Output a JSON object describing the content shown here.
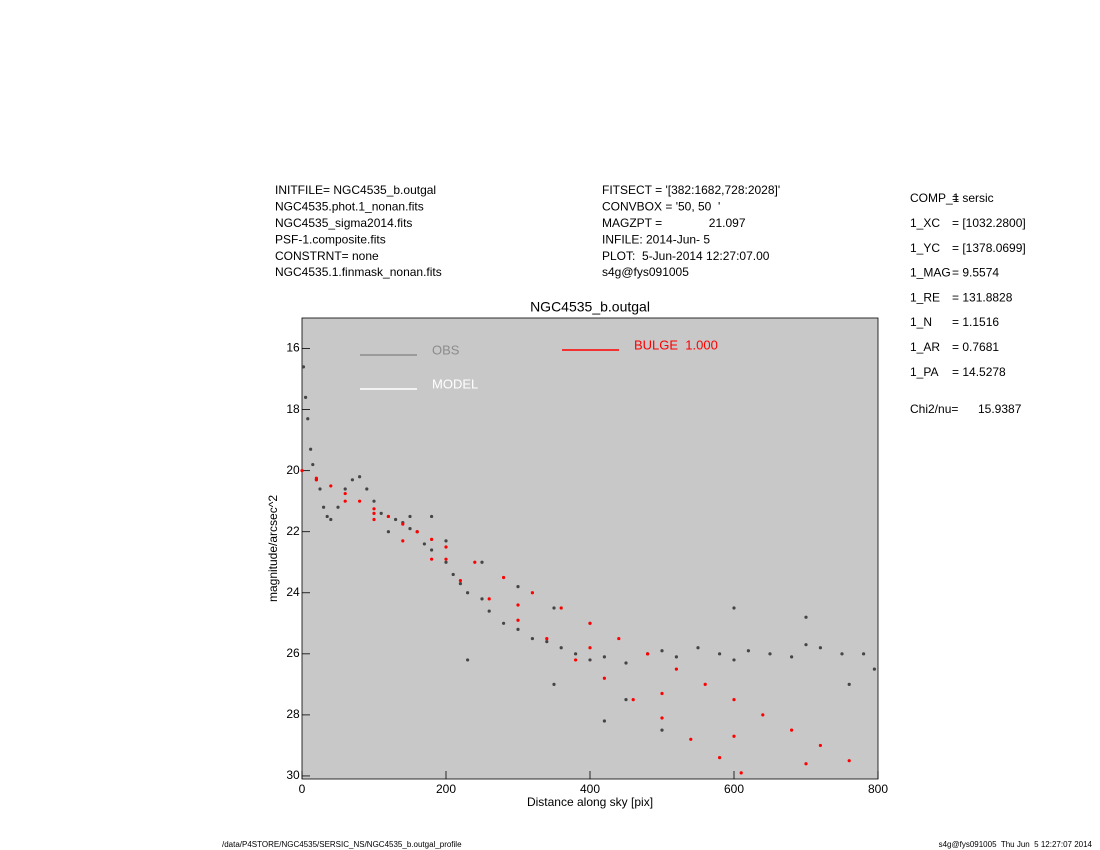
{
  "header": {
    "left": [
      "INITFILE= NGC4535_b.outgal",
      "NGC4535.phot.1_nonan.fits",
      "NGC4535_sigma2014.fits",
      "PSF-1.composite.fits",
      "CONSTRNT= none",
      "NGC4535.1.finmask_nonan.fits"
    ],
    "middle": [
      "FITSECT = '[382:1682,728:2028]'",
      "CONVBOX = '50, 50  '",
      "MAGZPT =              21.097",
      "INFILE: 2014-Jun- 5",
      "PLOT:  5-Jun-2014 12:27:07.00",
      "s4g@fys091005"
    ]
  },
  "params": [
    {
      "label": "COMP_1",
      "value": "= sersic"
    },
    {
      "label": "1_XC",
      "value": "= [1032.2800]"
    },
    {
      "label": "1_YC",
      "value": "= [1378.0699]"
    },
    {
      "label": "1_MAG",
      "value": "= 9.5574"
    },
    {
      "label": "1_RE",
      "value": "= 131.8828"
    },
    {
      "label": "1_N",
      "value": "= 1.1516"
    },
    {
      "label": "1_AR",
      "value": "= 0.7681"
    },
    {
      "label": "1_PA",
      "value": "= 14.5278"
    }
  ],
  "chi2": {
    "label": "Chi2/nu=",
    "value": "15.9387"
  },
  "footer": {
    "left": "/data/P4STORE/NGC4535/SERSIC_NS/NGC4535_b.outgal_profile",
    "right": "s4g@fys091005  Thu Jun  5 12:27:07 2014"
  },
  "chart_data": {
    "type": "scatter",
    "title": "NGC4535_b.outgal",
    "xlabel": "Distance along sky [pix]",
    "ylabel": "magnitude/arcsec^2",
    "xlim": [
      0,
      800
    ],
    "ylim": [
      15,
      30.1
    ],
    "y_inverted": true,
    "xticks": [
      0,
      200,
      400,
      600,
      800
    ],
    "yticks": [
      16,
      18,
      20,
      22,
      24,
      26,
      28,
      30
    ],
    "background": "#c8c8c8",
    "series": [
      {
        "name": "OBS",
        "color": "#454545",
        "legend_color": "#8c8c8c",
        "x": [
          2,
          5,
          8,
          12,
          15,
          20,
          25,
          30,
          35,
          40,
          50,
          60,
          70,
          80,
          90,
          100,
          110,
          120,
          130,
          140,
          150,
          160,
          170,
          180,
          200,
          210,
          220,
          230,
          250,
          260,
          280,
          300,
          320,
          340,
          360,
          380,
          400,
          420,
          450,
          480,
          500,
          520,
          550,
          580,
          600,
          620,
          650,
          680,
          700,
          720,
          750,
          780,
          795,
          120,
          150,
          200,
          250,
          300,
          350,
          400,
          450,
          350,
          500,
          420,
          600,
          700,
          760,
          230,
          180
        ],
        "y": [
          16.6,
          17.6,
          18.3,
          19.3,
          19.8,
          20.3,
          20.6,
          21.2,
          21.5,
          21.6,
          21.2,
          20.6,
          20.3,
          20.2,
          20.6,
          21.0,
          21.4,
          21.5,
          21.6,
          21.7,
          21.9,
          22.0,
          22.4,
          22.6,
          23.0,
          23.4,
          23.7,
          24.0,
          24.2,
          24.6,
          25.0,
          25.2,
          25.5,
          25.6,
          25.8,
          26.0,
          26.2,
          26.1,
          26.3,
          26.0,
          25.9,
          26.1,
          25.8,
          26.0,
          26.2,
          25.9,
          26.0,
          26.1,
          25.7,
          25.8,
          26.0,
          26.0,
          26.5,
          22.0,
          21.5,
          22.3,
          23.0,
          23.8,
          24.5,
          25.0,
          27.5,
          27.0,
          28.5,
          28.2,
          24.5,
          24.8,
          27.0,
          26.2,
          21.5
        ]
      },
      {
        "name": "MODEL",
        "color": "#ffffff",
        "legend_color": "#ffffff",
        "x": [],
        "y": []
      },
      {
        "name": "BULGE  1.000",
        "color": "#ff0000",
        "legend_color": "#ff0000",
        "x": [
          0,
          20,
          40,
          60,
          80,
          100,
          120,
          140,
          160,
          180,
          200,
          240,
          280,
          320,
          360,
          400,
          440,
          480,
          520,
          560,
          600,
          640,
          680,
          720,
          760,
          20,
          60,
          100,
          140,
          180,
          220,
          260,
          300,
          340,
          380,
          420,
          460,
          500,
          540,
          580,
          610,
          100,
          200,
          300,
          400,
          500,
          600,
          700
        ],
        "y": [
          20.0,
          20.25,
          20.5,
          20.75,
          21.0,
          21.25,
          21.5,
          21.75,
          22.0,
          22.25,
          22.5,
          23.0,
          23.5,
          24.0,
          24.5,
          25.0,
          25.5,
          26.0,
          26.5,
          27.0,
          27.5,
          28.0,
          28.5,
          29.0,
          29.5,
          20.3,
          21.0,
          21.6,
          22.3,
          22.9,
          23.6,
          24.2,
          24.9,
          25.5,
          26.2,
          26.8,
          27.5,
          28.1,
          28.8,
          29.4,
          29.9,
          21.4,
          22.9,
          24.4,
          25.8,
          27.3,
          28.7,
          29.6
        ]
      }
    ]
  }
}
